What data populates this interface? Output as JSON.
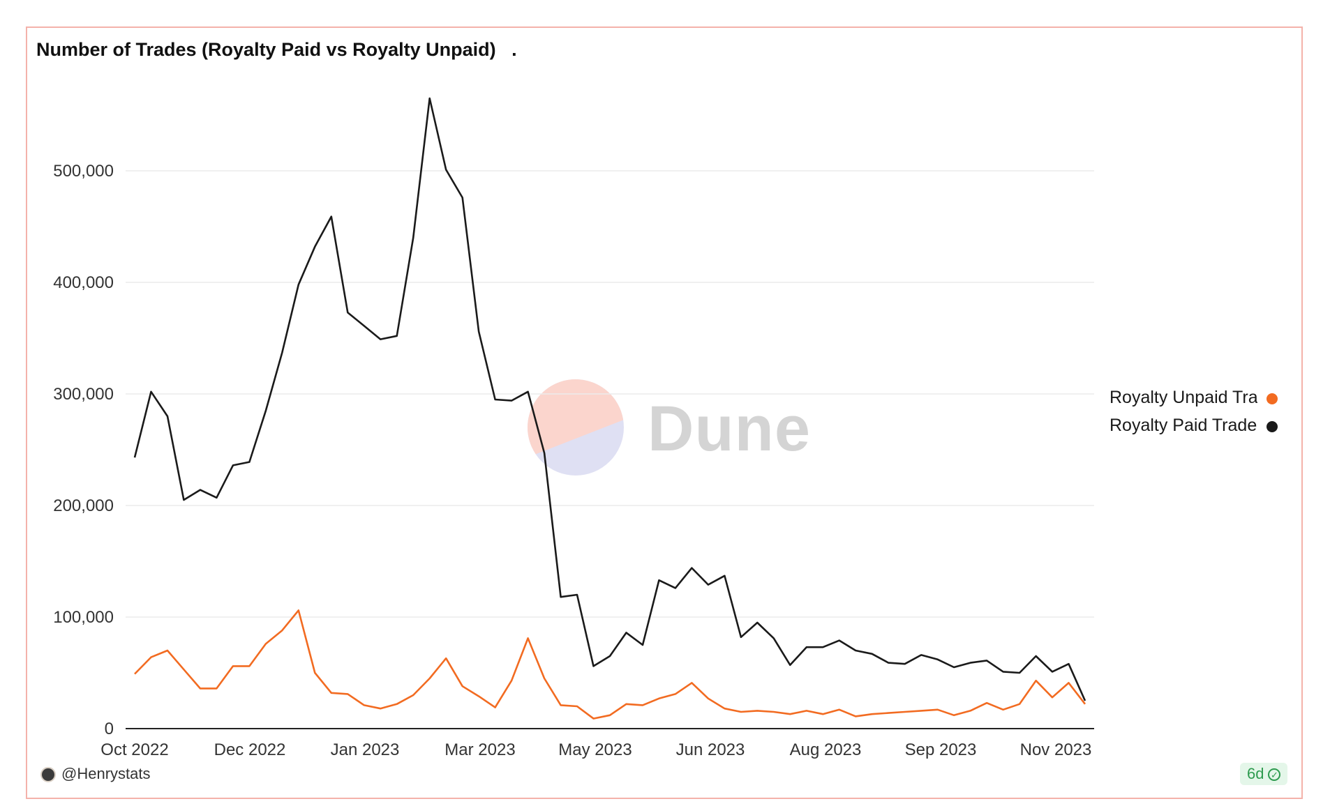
{
  "title": "Number of Trades (Royalty Paid vs Royalty Unpaid)   .",
  "watermark": "Dune",
  "footer": {
    "author": "@Henrystats",
    "badge_label": "6d"
  },
  "colors": {
    "unpaid": "#f26b21",
    "paid": "#1a1a1a",
    "grid": "#ececec",
    "border": "#f4b2aa"
  },
  "chart_data": {
    "type": "line",
    "title": "Number of Trades (Royalty Paid vs Royalty Unpaid)   .",
    "x_ticks": [
      "Oct 2022",
      "Dec 2022",
      "Jan 2023",
      "Mar 2023",
      "May 2023",
      "Jun 2023",
      "Aug 2023",
      "Sep 2023",
      "Nov 2023"
    ],
    "y_ticks": [
      "0",
      "100,000",
      "200,000",
      "300,000",
      "400,000",
      "500,000"
    ],
    "ylim": [
      0,
      580000
    ],
    "grid": true,
    "legend_position": "right",
    "series": [
      {
        "name": "Royalty Unpaid Tra",
        "color": "#f26b21",
        "values": [
          49000,
          64000,
          70000,
          53000,
          36000,
          36000,
          56000,
          56000,
          76000,
          88000,
          106000,
          50000,
          32000,
          31000,
          21000,
          18000,
          22000,
          30000,
          45000,
          63000,
          38000,
          29000,
          19000,
          43000,
          81000,
          45000,
          21000,
          20000,
          9000,
          12000,
          22000,
          21000,
          27000,
          31000,
          41000,
          27000,
          18000,
          15000,
          16000,
          15000,
          13000,
          16000,
          13000,
          17000,
          11000,
          13000,
          14000,
          15000,
          16000,
          17000,
          12000,
          16000,
          23000,
          17000,
          22000,
          43000,
          28000,
          41000,
          22000
        ]
      },
      {
        "name": "Royalty Paid Trade",
        "color": "#1a1a1a",
        "values": [
          243000,
          302000,
          280000,
          205000,
          214000,
          207000,
          236000,
          239000,
          285000,
          337000,
          398000,
          432000,
          459000,
          373000,
          361000,
          349000,
          352000,
          440000,
          565000,
          501000,
          476000,
          356000,
          295000,
          294000,
          302000,
          247000,
          118000,
          120000,
          56000,
          65000,
          86000,
          75000,
          133000,
          126000,
          144000,
          129000,
          137000,
          82000,
          95000,
          81000,
          57000,
          73000,
          73000,
          79000,
          70000,
          67000,
          59000,
          58000,
          66000,
          62000,
          55000,
          59000,
          61000,
          51000,
          50000,
          65000,
          51000,
          58000,
          25000
        ]
      }
    ]
  }
}
